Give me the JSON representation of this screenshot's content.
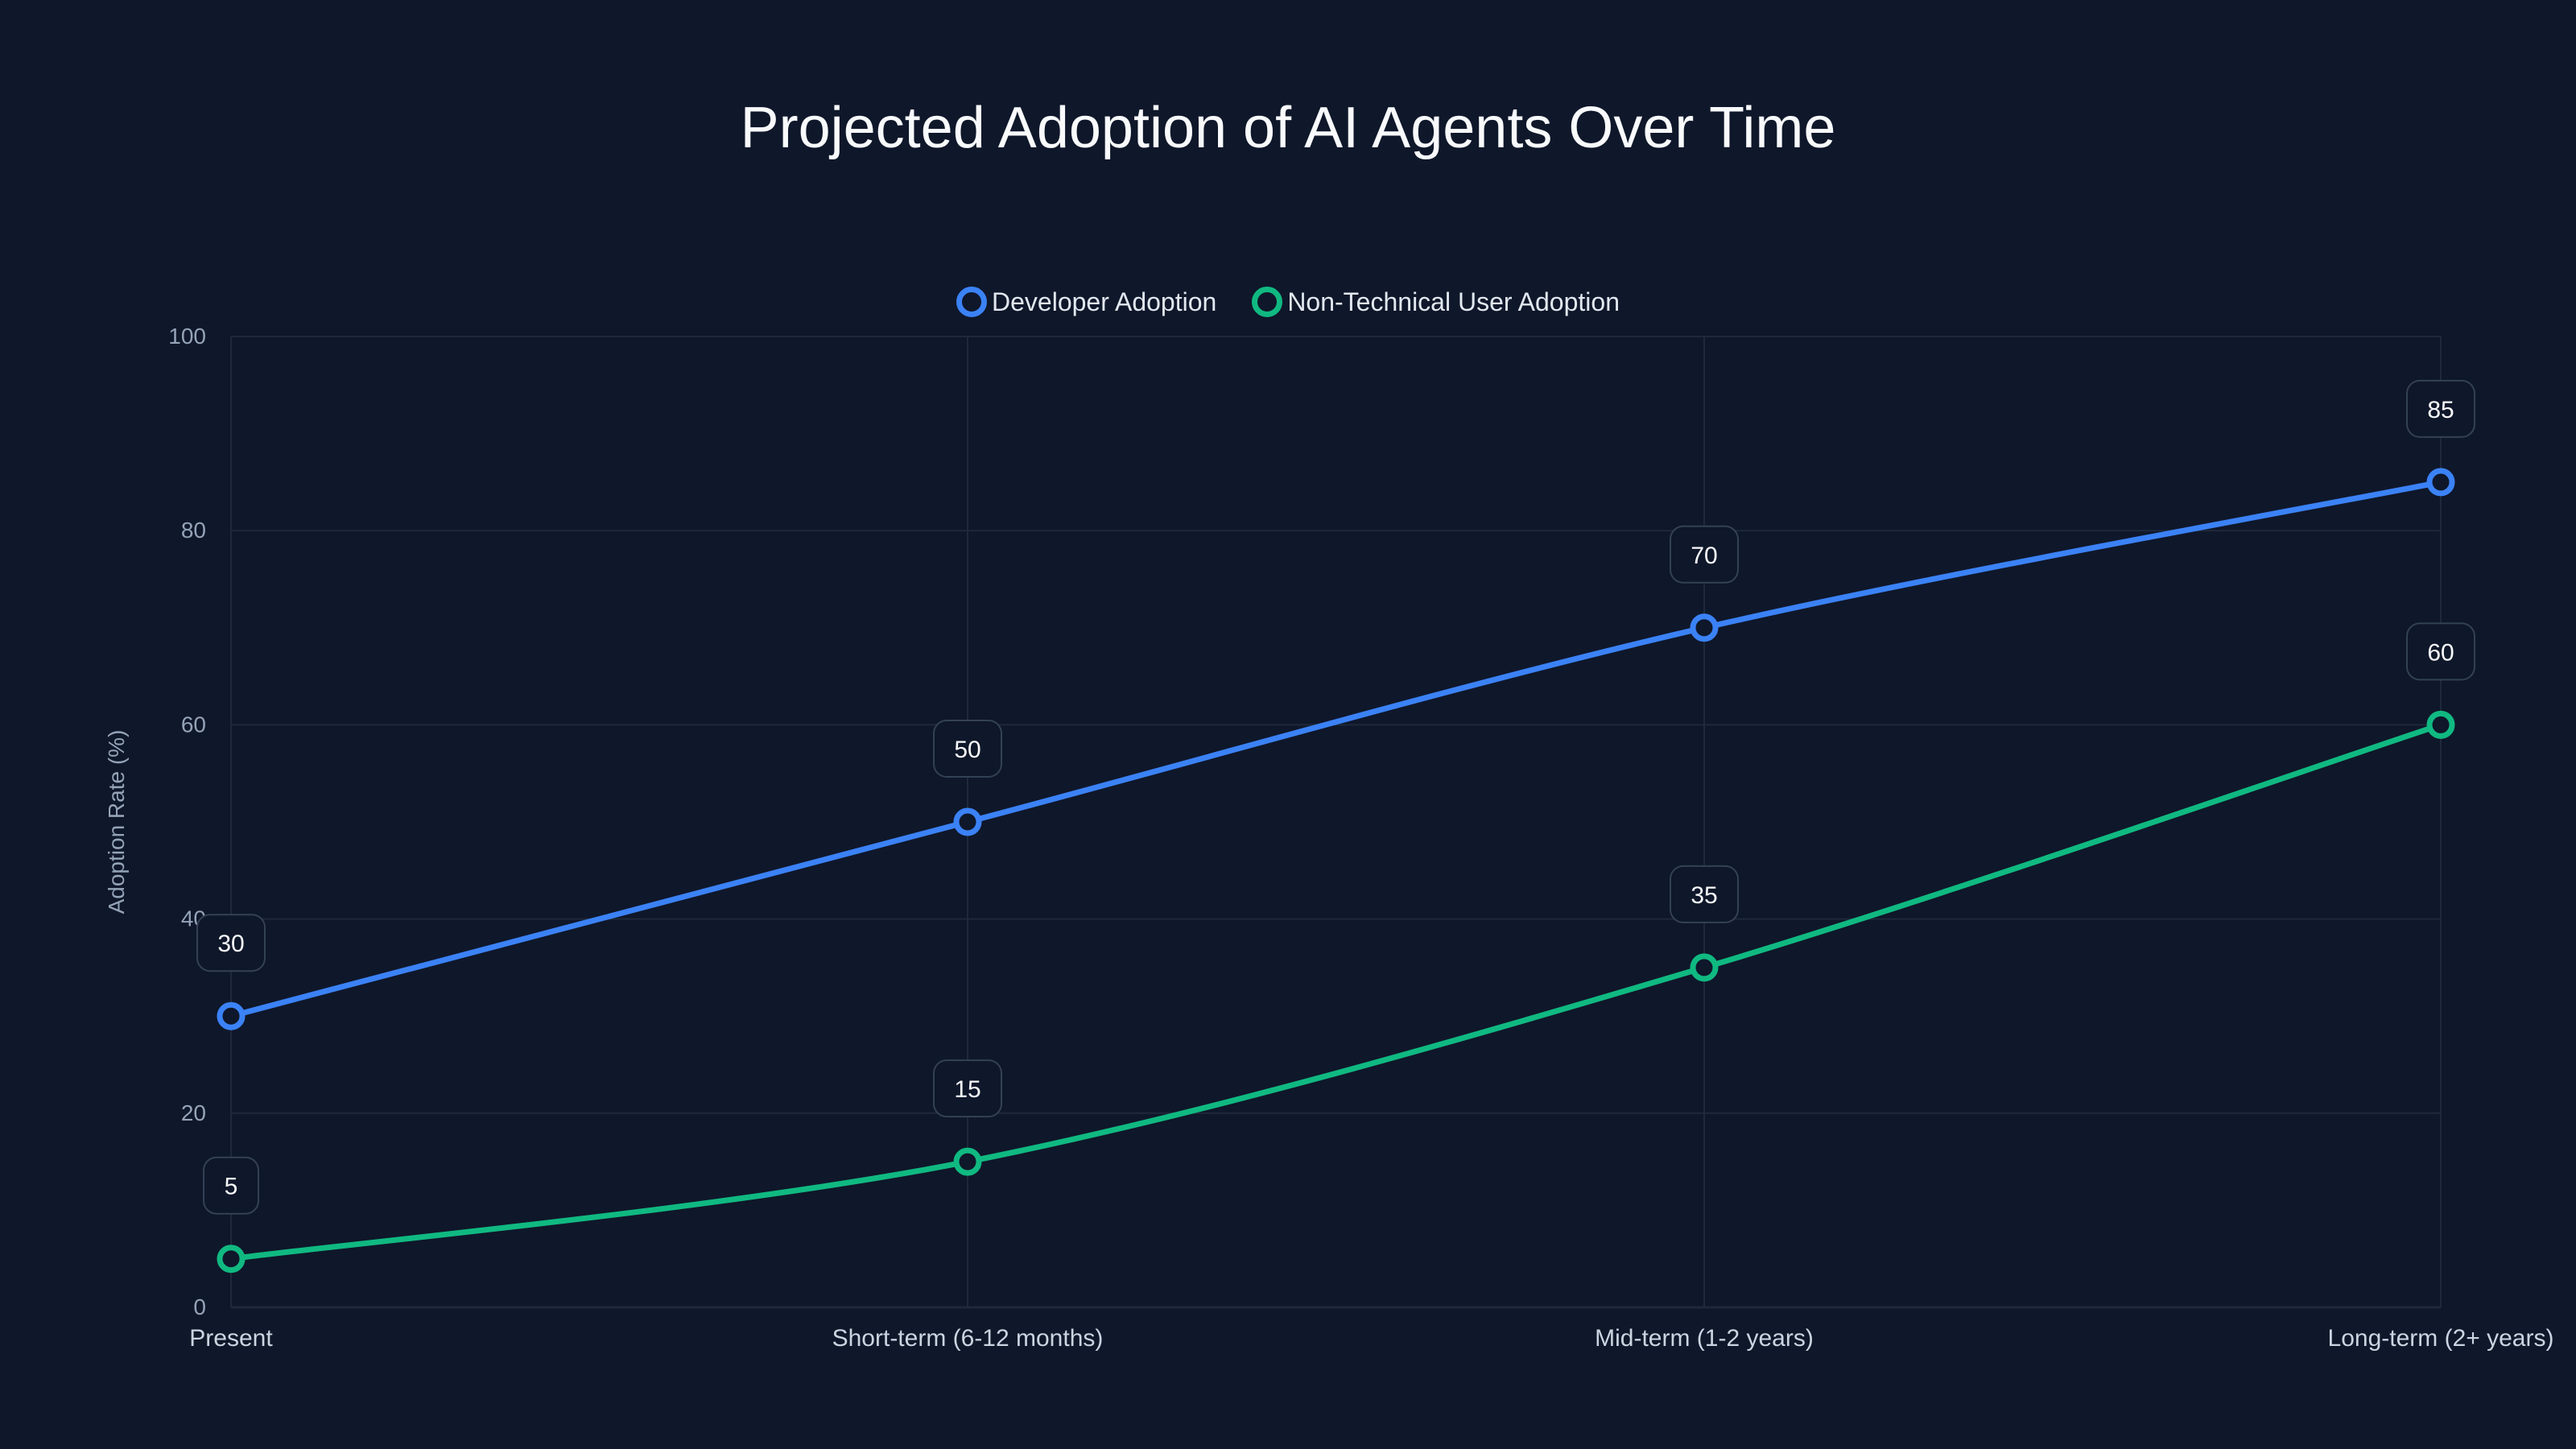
{
  "chart": {
    "title": "Projected Adoption of AI Agents Over Time",
    "background": "#0f172a",
    "grid_color": "#1e293b",
    "legend": [
      {
        "label": "Developer Adoption",
        "color": "#3b82f6"
      },
      {
        "label": "Non-Technical User Adoption",
        "color": "#10b981"
      }
    ]
  },
  "chart_data": {
    "type": "line",
    "title": "Projected Adoption of AI Agents Over Time",
    "xlabel": "",
    "ylabel": "Adoption Rate (%)",
    "categories": [
      "Present",
      "Short-term (6-12 months)",
      "Mid-term (1-2 years)",
      "Long-term (2+ years)"
    ],
    "series": [
      {
        "name": "Developer Adoption",
        "color": "#3b82f6",
        "values": [
          30,
          50,
          70,
          85
        ]
      },
      {
        "name": "Non-Technical User Adoption",
        "color": "#10b981",
        "values": [
          5,
          15,
          35,
          60
        ]
      }
    ],
    "ylim": [
      0,
      100
    ],
    "yticks": [
      0,
      20,
      40,
      60,
      80,
      100
    ],
    "grid": true,
    "legend_position": "top-center",
    "data_labels": true
  }
}
